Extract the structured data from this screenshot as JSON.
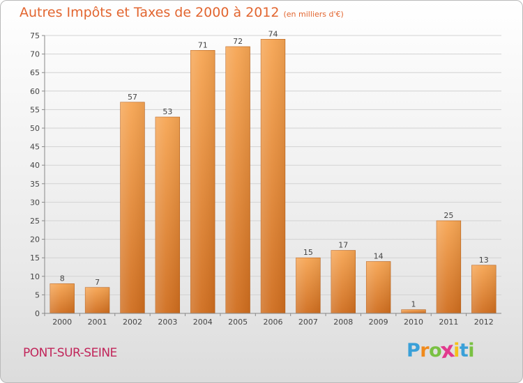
{
  "header": {
    "title": "Autres Impôts et Taxes de 2000 à 2012",
    "unit_note": "(en milliers d'€)"
  },
  "footer": {
    "location": "PONT-SUR-SEINE",
    "logo_letters": [
      "P",
      "r",
      "o",
      "x",
      "i",
      "t",
      "i"
    ],
    "logo_colors": [
      "#3aa0d8",
      "#f08a1c",
      "#7ac143",
      "#e23a8e",
      "#f6c11a",
      "#3aa0d8",
      "#7ac143"
    ]
  },
  "chart_data": {
    "type": "bar",
    "title": "Autres Impôts et Taxes de 2000 à 2012",
    "subtitle": "(en milliers d'€)",
    "xlabel": "",
    "ylabel": "",
    "categories": [
      "2000",
      "2001",
      "2002",
      "2003",
      "2004",
      "2005",
      "2006",
      "2007",
      "2008",
      "2009",
      "2010",
      "2011",
      "2012"
    ],
    "values": [
      8,
      7,
      57,
      53,
      71,
      72,
      74,
      15,
      17,
      14,
      1,
      25,
      13
    ],
    "ylim": [
      0,
      75
    ],
    "yticks": [
      0,
      5,
      10,
      15,
      20,
      25,
      30,
      35,
      40,
      45,
      50,
      55,
      60,
      65,
      70,
      75
    ],
    "grid": true,
    "legend": "none",
    "bar_color_top": "#f6a553",
    "bar_color_bottom": "#cf6d1e"
  }
}
